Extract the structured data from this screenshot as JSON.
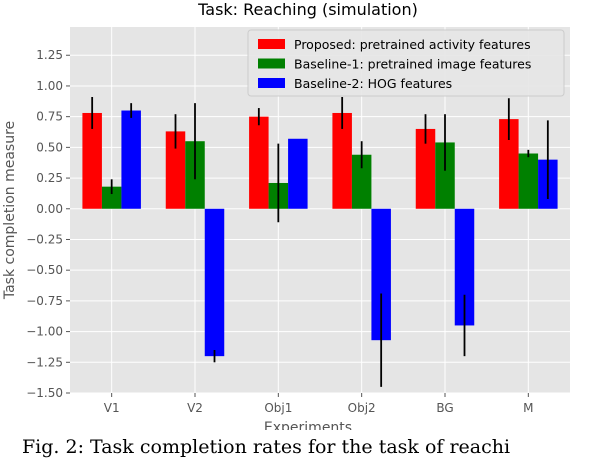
{
  "caption": "Fig. 2: Task completion rates for the task of reachi",
  "chart_data": {
    "type": "bar",
    "title": "Task: Reaching (simulation)",
    "xlabel": "Experiments",
    "ylabel": "Task completion measure",
    "categories": [
      "V1",
      "V2",
      "Obj1",
      "Obj2",
      "BG",
      "M"
    ],
    "ylim": [
      -1.5,
      1.48
    ],
    "yticks": [
      -1.5,
      -1.25,
      -1.0,
      -0.75,
      -0.5,
      -0.25,
      0.0,
      0.25,
      0.5,
      0.75,
      1.0,
      1.25
    ],
    "ytick_labels": [
      "−1.50",
      "−1.25",
      "−1.00",
      "−0.75",
      "−0.50",
      "−0.25",
      "0.00",
      "0.25",
      "0.50",
      "0.75",
      "1.00",
      "1.25"
    ],
    "grid": true,
    "legend_position": "top-right",
    "series": [
      {
        "name": "Proposed: pretrained activity features",
        "color": "#ff0000",
        "values": [
          0.78,
          0.63,
          0.75,
          0.78,
          0.65,
          0.73
        ],
        "errors": [
          0.13,
          0.14,
          0.07,
          0.13,
          0.12,
          0.17
        ]
      },
      {
        "name": "Baseline-1: pretrained image features",
        "color": "#008000",
        "values": [
          0.18,
          0.55,
          0.21,
          0.44,
          0.54,
          0.45
        ],
        "errors": [
          0.06,
          0.31,
          0.32,
          0.11,
          0.23,
          0.03
        ]
      },
      {
        "name": "Baseline-2: HOG features",
        "color": "#0000ff",
        "values": [
          0.8,
          -1.2,
          0.57,
          -1.07,
          -0.95,
          0.4
        ],
        "errors": [
          0.06,
          0.05,
          0.0,
          0.38,
          0.25,
          0.32
        ]
      }
    ]
  }
}
